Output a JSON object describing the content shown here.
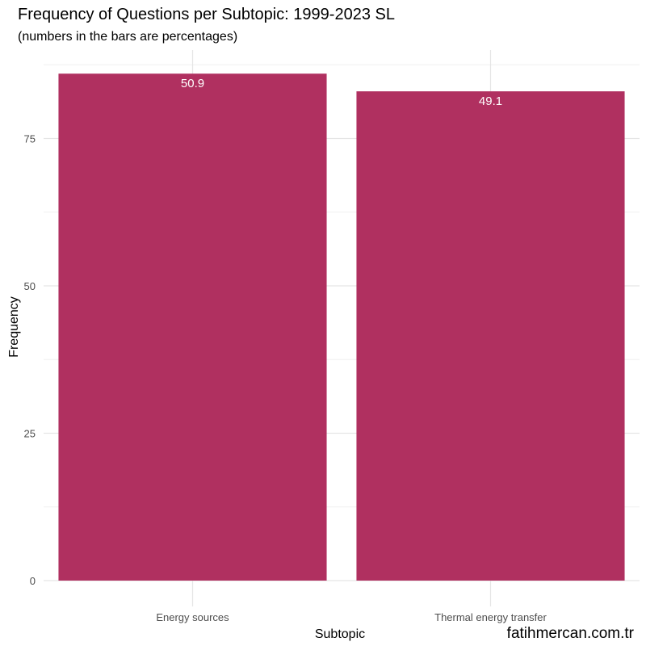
{
  "chart_data": {
    "type": "bar",
    "title": "Frequency of Questions per Subtopic: 1999-2023 SL",
    "subtitle": "(numbers in the bars are percentages)",
    "xlabel": "Subtopic",
    "ylabel": "Frequency",
    "categories": [
      "Energy sources",
      "Thermal energy transfer"
    ],
    "values": [
      86,
      83
    ],
    "bar_labels": [
      "50.9",
      "49.1"
    ],
    "yticks": [
      0,
      25,
      50,
      75
    ],
    "ytick_labels": [
      "0",
      "25",
      "50",
      "75"
    ],
    "ylim": [
      0,
      89
    ],
    "grid": true,
    "legend": "none",
    "bar_color": "#b03060",
    "caption": "fatihmercan.com.tr"
  }
}
